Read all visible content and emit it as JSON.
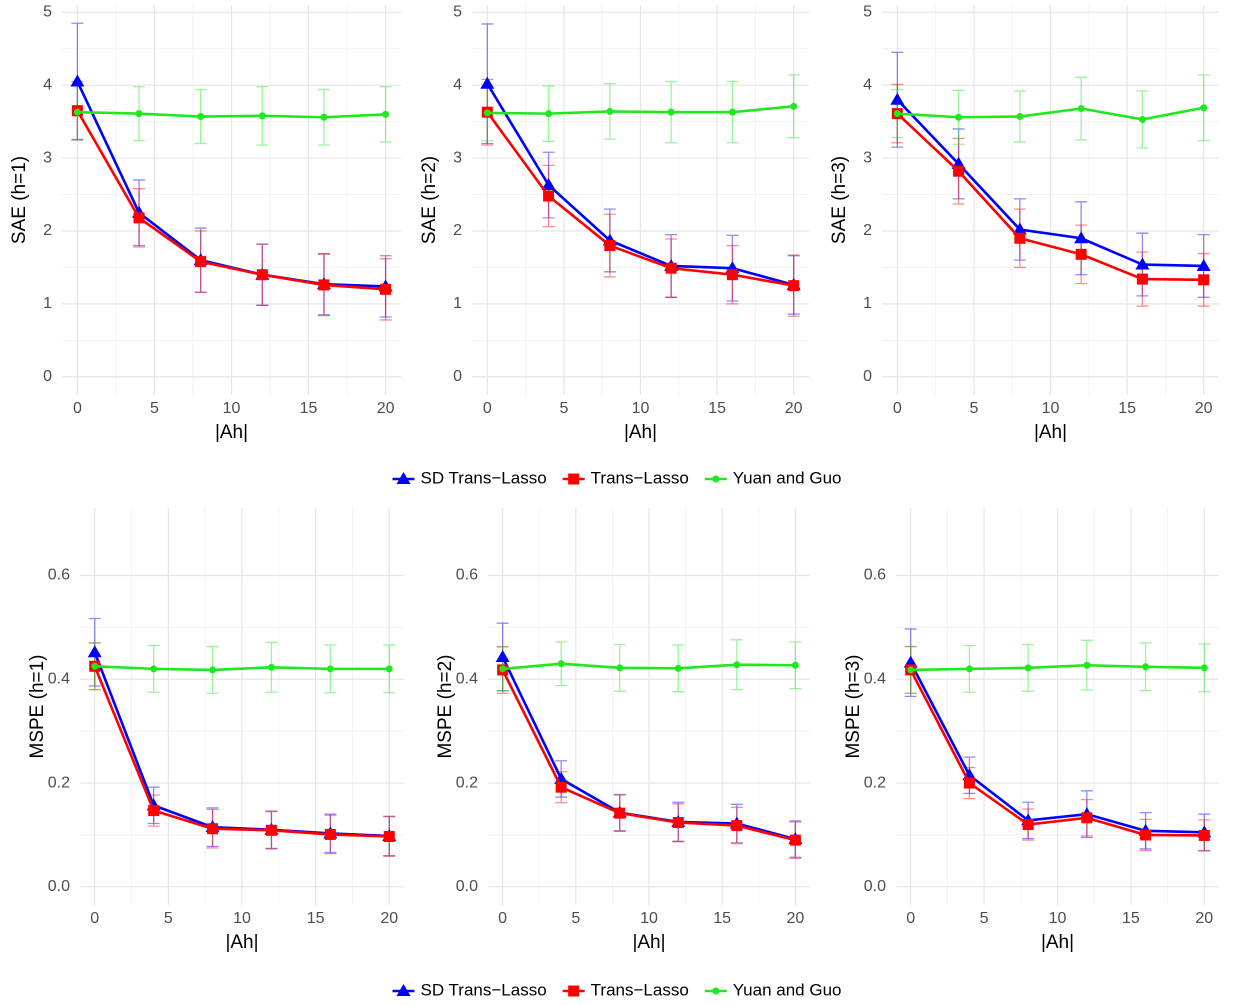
{
  "chart_data": [
    {
      "type": "line",
      "y_label": "SAE (h=1)",
      "x_label": "|Ah|",
      "x": [
        0,
        4,
        8,
        12,
        16,
        20
      ],
      "xlim": [
        -1,
        21
      ],
      "xticks": [
        0,
        5,
        10,
        15,
        20
      ],
      "ylim": [
        -0.25,
        5.1
      ],
      "yticks": [
        0,
        1,
        2,
        3,
        4,
        5
      ],
      "grid": true,
      "series": [
        {
          "name": "SD Trans−Lasso",
          "color": "#0000ff",
          "values": [
            4.05,
            2.25,
            1.6,
            1.4,
            1.27,
            1.24
          ],
          "errors": [
            0.8,
            0.45,
            0.44,
            0.42,
            0.42,
            0.42
          ]
        },
        {
          "name": "Trans−Lasso",
          "color": "#ff0000",
          "values": [
            3.65,
            2.18,
            1.58,
            1.4,
            1.26,
            1.2
          ],
          "errors": [
            0.4,
            0.4,
            0.42,
            0.42,
            0.42,
            0.42
          ]
        },
        {
          "name": "Yuan and Guo",
          "color": "#1ee81e",
          "values": [
            3.63,
            3.61,
            3.57,
            3.58,
            3.56,
            3.6
          ],
          "errors": [
            0.37,
            0.37,
            0.37,
            0.4,
            0.38,
            0.38
          ]
        }
      ]
    },
    {
      "type": "line",
      "y_label": "SAE (h=2)",
      "x_label": "|Ah|",
      "x": [
        0,
        4,
        8,
        12,
        16,
        20
      ],
      "xlim": [
        -1,
        21
      ],
      "xticks": [
        0,
        5,
        10,
        15,
        20
      ],
      "ylim": [
        -0.25,
        5.1
      ],
      "yticks": [
        0,
        1,
        2,
        3,
        4,
        5
      ],
      "grid": true,
      "series": [
        {
          "name": "SD Trans−Lasso",
          "color": "#0000ff",
          "values": [
            4.02,
            2.63,
            1.87,
            1.52,
            1.49,
            1.26
          ],
          "errors": [
            0.82,
            0.45,
            0.43,
            0.43,
            0.45,
            0.4
          ]
        },
        {
          "name": "Trans−Lasso",
          "color": "#ff0000",
          "values": [
            3.63,
            2.48,
            1.8,
            1.49,
            1.4,
            1.25
          ],
          "errors": [
            0.45,
            0.42,
            0.43,
            0.4,
            0.4,
            0.42
          ]
        },
        {
          "name": "Yuan and Guo",
          "color": "#1ee81e",
          "values": [
            3.62,
            3.61,
            3.64,
            3.63,
            3.63,
            3.71
          ],
          "errors": [
            0.38,
            0.38,
            0.38,
            0.42,
            0.42,
            0.43
          ]
        }
      ]
    },
    {
      "type": "line",
      "y_label": "SAE (h=3)",
      "x_label": "|Ah|",
      "x": [
        0,
        4,
        8,
        12,
        16,
        20
      ],
      "xlim": [
        -1,
        21
      ],
      "xticks": [
        0,
        5,
        10,
        15,
        20
      ],
      "ylim": [
        -0.25,
        5.1
      ],
      "yticks": [
        0,
        1,
        2,
        3,
        4,
        5
      ],
      "grid": true,
      "series": [
        {
          "name": "SD Trans−Lasso",
          "color": "#0000ff",
          "values": [
            3.8,
            2.92,
            2.02,
            1.9,
            1.54,
            1.52
          ],
          "errors": [
            0.65,
            0.48,
            0.42,
            0.5,
            0.43,
            0.43
          ]
        },
        {
          "name": "Trans−Lasso",
          "color": "#ff0000",
          "values": [
            3.61,
            2.82,
            1.9,
            1.68,
            1.34,
            1.33
          ],
          "errors": [
            0.4,
            0.45,
            0.4,
            0.4,
            0.37,
            0.36
          ]
        },
        {
          "name": "Yuan and Guo",
          "color": "#1ee81e",
          "values": [
            3.61,
            3.56,
            3.57,
            3.68,
            3.53,
            3.69
          ],
          "errors": [
            0.33,
            0.37,
            0.35,
            0.43,
            0.39,
            0.45
          ]
        }
      ]
    },
    {
      "type": "line",
      "y_label": "MSPE (h=1)",
      "x_label": "|Ah|",
      "x": [
        0,
        4,
        8,
        12,
        16,
        20
      ],
      "xlim": [
        -1,
        21
      ],
      "xticks": [
        0,
        5,
        10,
        15,
        20
      ],
      "ylim": [
        -0.035,
        0.73
      ],
      "yticks": [
        {
          "value": 0,
          "label": "0.0"
        },
        0.2,
        0.4,
        0.6
      ],
      "grid": true,
      "series": [
        {
          "name": "SD Trans−Lasso",
          "color": "#0000ff",
          "values": [
            0.452,
            0.157,
            0.115,
            0.11,
            0.103,
            0.098
          ],
          "errors": [
            0.065,
            0.035,
            0.037,
            0.036,
            0.037,
            0.038
          ]
        },
        {
          "name": "Trans−Lasso",
          "color": "#ff0000",
          "values": [
            0.425,
            0.147,
            0.112,
            0.109,
            0.101,
            0.097
          ],
          "errors": [
            0.045,
            0.03,
            0.037,
            0.036,
            0.037,
            0.038
          ]
        },
        {
          "name": "Yuan and Guo",
          "color": "#1ee81e",
          "values": [
            0.425,
            0.42,
            0.418,
            0.423,
            0.42,
            0.42
          ],
          "errors": [
            0.045,
            0.045,
            0.045,
            0.048,
            0.046,
            0.046
          ]
        }
      ]
    },
    {
      "type": "line",
      "y_label": "MSPE (h=2)",
      "x_label": "|Ah|",
      "x": [
        0,
        4,
        8,
        12,
        16,
        20
      ],
      "xlim": [
        -1,
        21
      ],
      "xticks": [
        0,
        5,
        10,
        15,
        20
      ],
      "ylim": [
        -0.035,
        0.73
      ],
      "yticks": [
        {
          "value": 0,
          "label": "0.0"
        },
        0.2,
        0.4,
        0.6
      ],
      "grid": true,
      "series": [
        {
          "name": "SD Trans−Lasso",
          "color": "#0000ff",
          "values": [
            0.443,
            0.208,
            0.143,
            0.125,
            0.122,
            0.092
          ],
          "errors": [
            0.065,
            0.035,
            0.035,
            0.038,
            0.037,
            0.035
          ]
        },
        {
          "name": "Trans−Lasso",
          "color": "#ff0000",
          "values": [
            0.418,
            0.192,
            0.142,
            0.124,
            0.118,
            0.09
          ],
          "errors": [
            0.045,
            0.03,
            0.035,
            0.036,
            0.035,
            0.035
          ]
        },
        {
          "name": "Yuan and Guo",
          "color": "#1ee81e",
          "values": [
            0.42,
            0.43,
            0.422,
            0.421,
            0.428,
            0.427
          ],
          "errors": [
            0.042,
            0.042,
            0.045,
            0.045,
            0.048,
            0.045
          ]
        }
      ]
    },
    {
      "type": "line",
      "y_label": "MSPE (h=3)",
      "x_label": "|Ah|",
      "x": [
        0,
        4,
        8,
        12,
        16,
        20
      ],
      "xlim": [
        -1,
        21
      ],
      "xticks": [
        0,
        5,
        10,
        15,
        20
      ],
      "ylim": [
        -0.035,
        0.73
      ],
      "yticks": [
        {
          "value": 0,
          "label": "0.0"
        },
        0.2,
        0.4,
        0.6
      ],
      "grid": true,
      "series": [
        {
          "name": "SD Trans−Lasso",
          "color": "#0000ff",
          "values": [
            0.432,
            0.215,
            0.128,
            0.14,
            0.108,
            0.105
          ],
          "errors": [
            0.065,
            0.035,
            0.035,
            0.045,
            0.035,
            0.035
          ]
        },
        {
          "name": "Trans−Lasso",
          "color": "#ff0000",
          "values": [
            0.418,
            0.2,
            0.12,
            0.133,
            0.1,
            0.099
          ],
          "errors": [
            0.045,
            0.03,
            0.03,
            0.035,
            0.03,
            0.03
          ]
        },
        {
          "name": "Yuan and Guo",
          "color": "#1ee81e",
          "values": [
            0.418,
            0.42,
            0.422,
            0.427,
            0.424,
            0.422
          ],
          "errors": [
            0.045,
            0.045,
            0.045,
            0.048,
            0.046,
            0.046
          ]
        }
      ]
    }
  ]
}
